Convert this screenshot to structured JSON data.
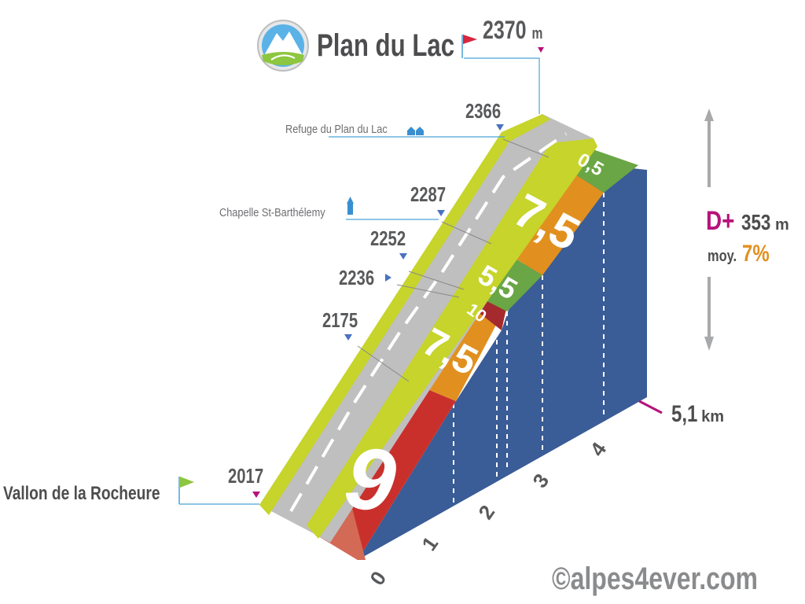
{
  "summit": {
    "name": "Plan du Lac",
    "altitude": "2370",
    "unit": "m"
  },
  "start": {
    "name": "Vallon de la Rocheure",
    "altitude": "2017"
  },
  "waypoints": [
    {
      "label": "Refuge du Plan du Lac",
      "altitude": "2366"
    },
    {
      "label": "Chapelle St-Barthélemy",
      "altitude": "2287"
    },
    {
      "label": "",
      "altitude": "2252"
    },
    {
      "label": "",
      "altitude": "2236"
    },
    {
      "label": "",
      "altitude": "2175"
    }
  ],
  "stats": {
    "gain_label": "D+",
    "gain_value": "353",
    "gain_unit": "m",
    "avg_label": "moy.",
    "avg_value": "7%"
  },
  "distance": {
    "value": "5,1",
    "unit": "km"
  },
  "km_ticks": [
    "0",
    "1",
    "2",
    "3",
    "4"
  ],
  "segments": [
    {
      "grade": "9",
      "color": "#c9302c"
    },
    {
      "grade": "7,5",
      "color": "#e1901f"
    },
    {
      "grade": "10",
      "color": "#a52a2d"
    },
    {
      "grade": "5,5",
      "color": "#6aa645"
    },
    {
      "grade": "7,5",
      "color": "#e1901f"
    },
    {
      "grade": "0,5",
      "color": "#6aa645"
    }
  ],
  "colors": {
    "wall": "#3a5c97",
    "road": "#bfbfbf",
    "verge": "#c6d42b",
    "accent": "#b5127a",
    "avg": "#e1901f",
    "leader": "#4aa3d8"
  },
  "credit": "©alpes4ever.com"
}
